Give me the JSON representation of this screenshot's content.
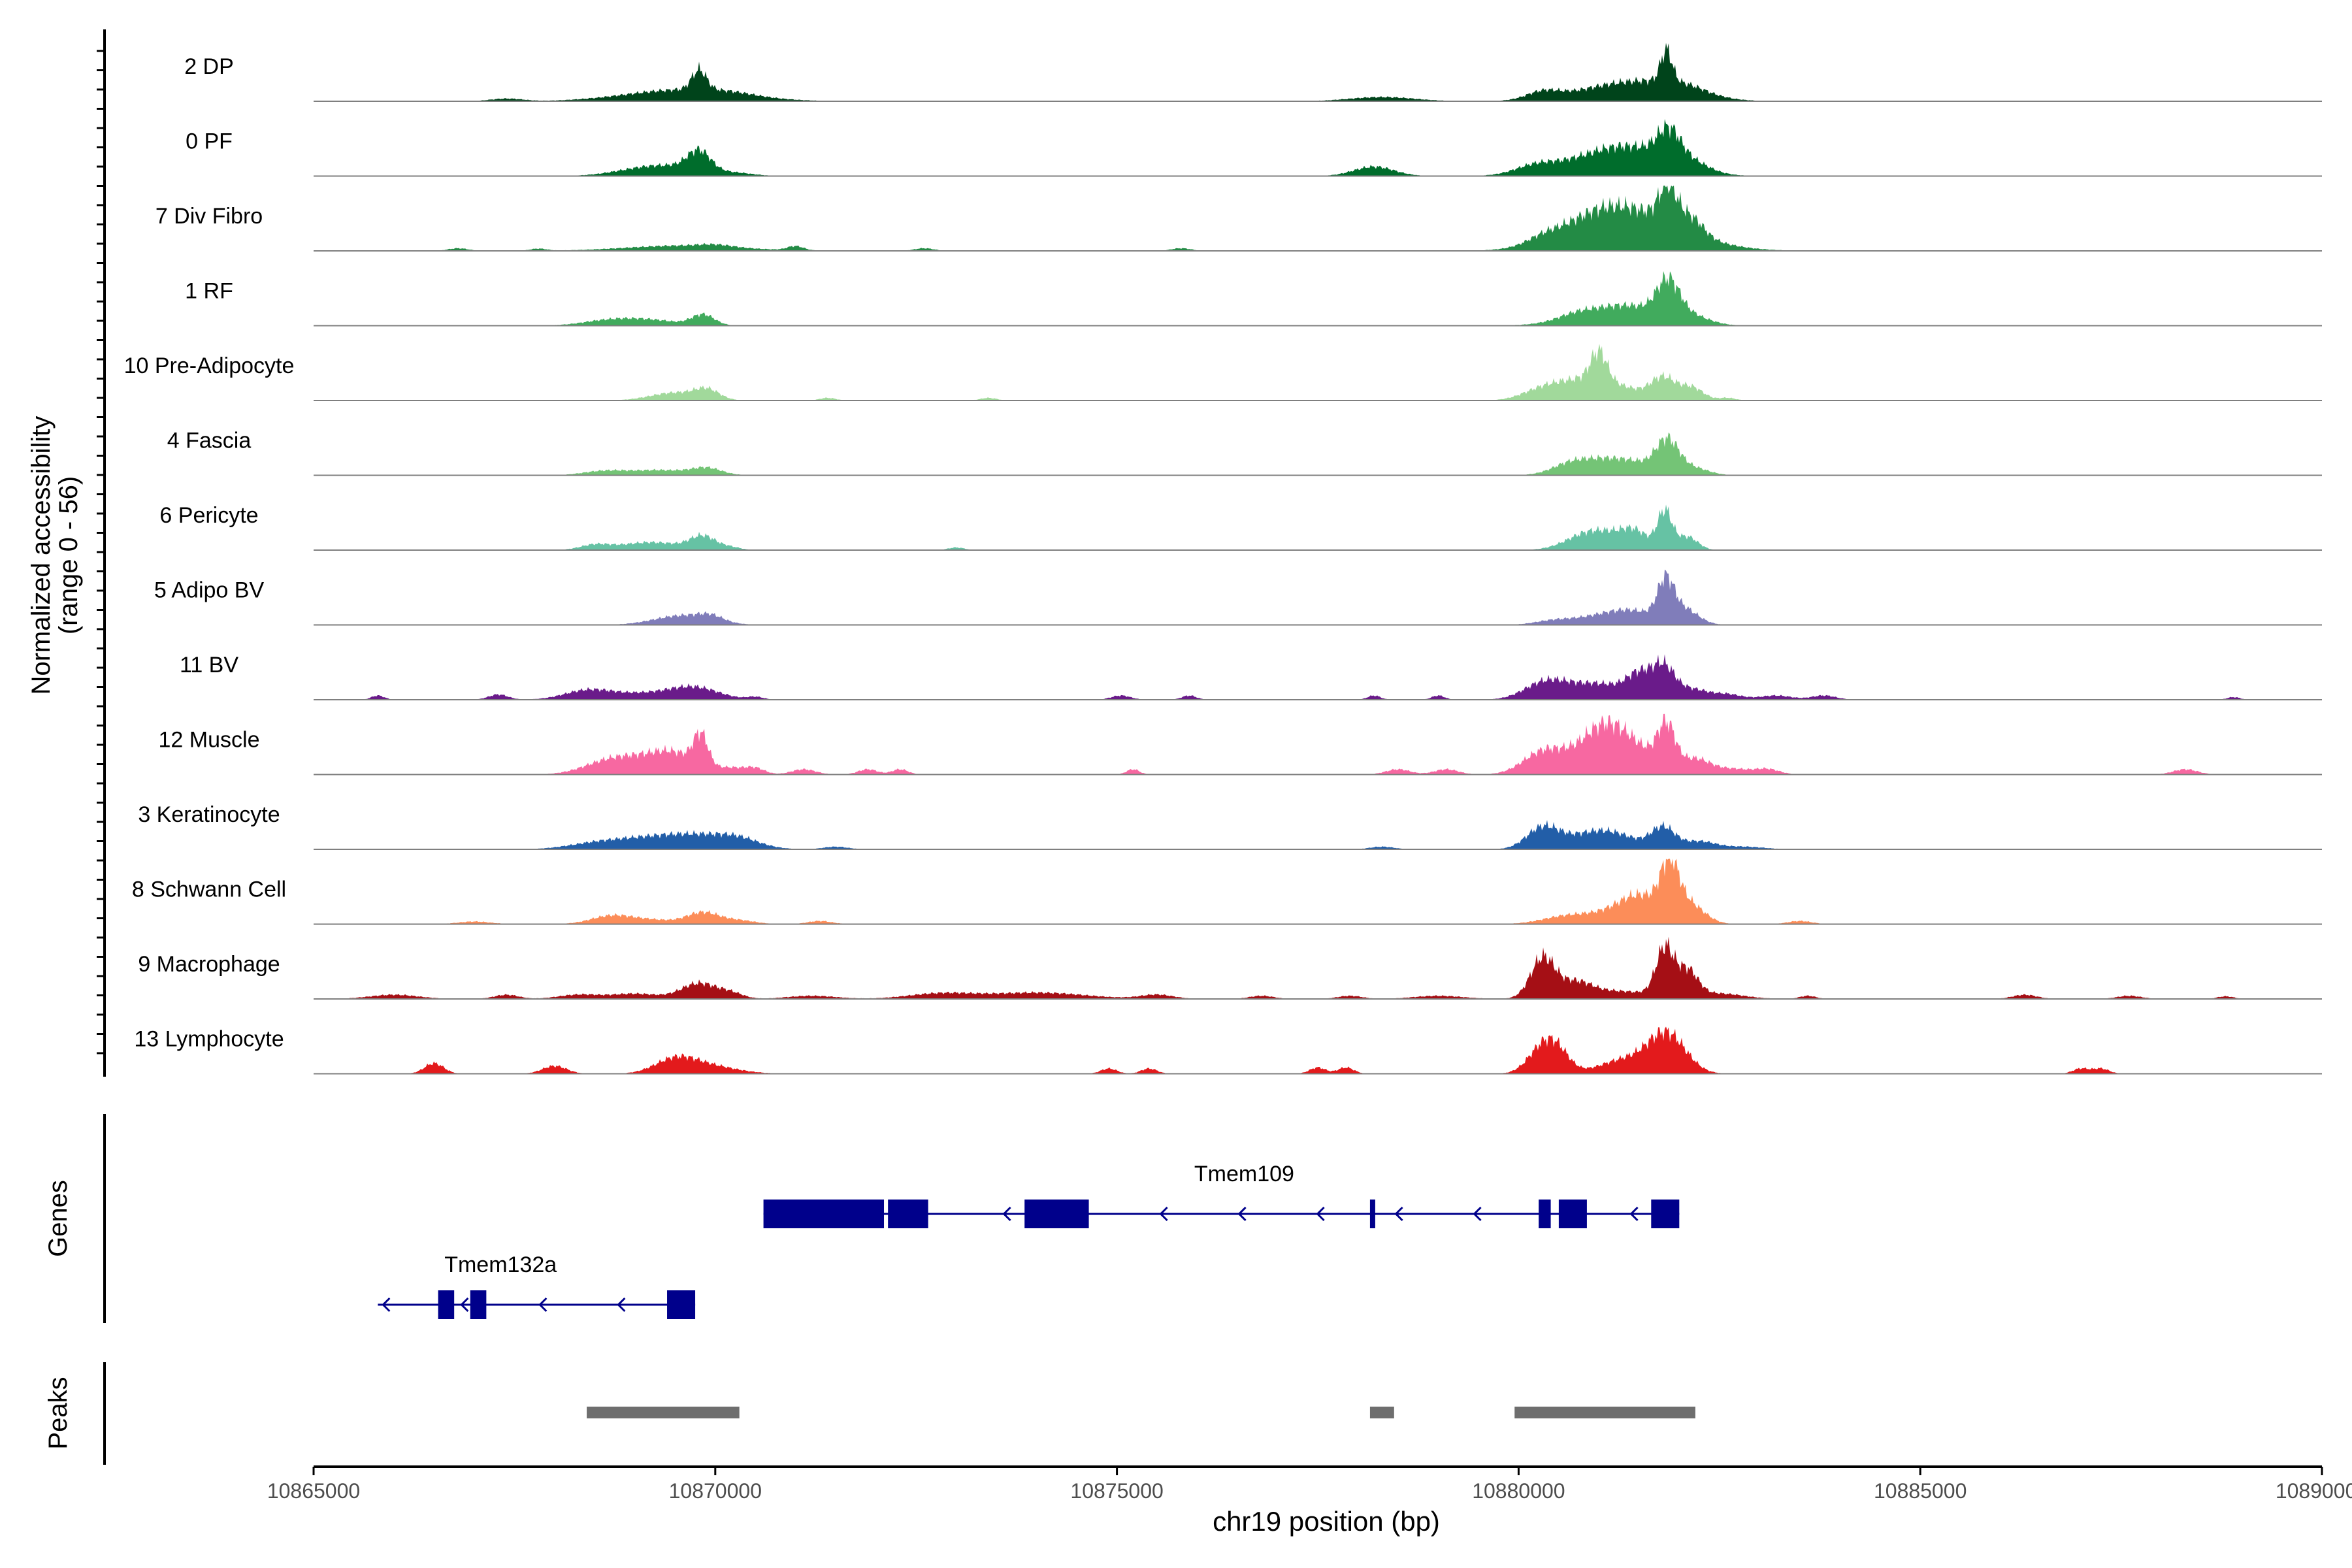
{
  "chart_data": {
    "type": "area",
    "title": "",
    "ylabel_line1": "Normalized accessibility",
    "ylabel_line2": "(range 0 - 56)",
    "xlabel": "chr19 position (bp)",
    "xlim": [
      10865000,
      10890000
    ],
    "xticks": [
      10865000,
      10870000,
      10875000,
      10880000,
      10885000,
      10890000
    ],
    "xtick_labels": [
      "10865000",
      "10870000",
      "10875000",
      "10880000",
      "10885000",
      "10890000"
    ],
    "y_range": [
      0,
      56
    ],
    "tracks": [
      {
        "name": "2 DP",
        "color": "#00441b",
        "peaks": [
          [
            10867400,
            200,
            5
          ],
          [
            10869600,
            700,
            22
          ],
          [
            10869800,
            90,
            38
          ],
          [
            10870200,
            300,
            4
          ],
          [
            10878300,
            400,
            8
          ],
          [
            10880300,
            200,
            14
          ],
          [
            10881000,
            500,
            18
          ],
          [
            10881700,
            500,
            30
          ],
          [
            10881840,
            70,
            60
          ],
          [
            10882100,
            250,
            10
          ]
        ]
      },
      {
        "name": "0 PF",
        "color": "#006d2c",
        "peaks": [
          [
            10869000,
            350,
            6
          ],
          [
            10869500,
            450,
            18
          ],
          [
            10869800,
            140,
            36
          ],
          [
            10870300,
            200,
            3
          ],
          [
            10878200,
            250,
            18
          ],
          [
            10880200,
            250,
            14
          ],
          [
            10881100,
            550,
            40
          ],
          [
            10881600,
            450,
            25
          ],
          [
            10881870,
            140,
            52
          ],
          [
            10882150,
            220,
            15
          ]
        ]
      },
      {
        "name": "7 Div Fibro",
        "color": "#238b45",
        "peaks": [
          [
            10866800,
            120,
            5
          ],
          [
            10867800,
            100,
            4
          ],
          [
            10869600,
            700,
            10
          ],
          [
            10870000,
            200,
            4
          ],
          [
            10871000,
            100,
            8
          ],
          [
            10872600,
            120,
            5
          ],
          [
            10875800,
            120,
            5
          ],
          [
            10880300,
            200,
            10
          ],
          [
            10881000,
            500,
            40
          ],
          [
            10881500,
            650,
            55
          ],
          [
            10881860,
            110,
            70
          ],
          [
            10882150,
            150,
            30
          ]
        ]
      },
      {
        "name": "1 RF",
        "color": "#41ab5d",
        "peaks": [
          [
            10868600,
            300,
            6
          ],
          [
            10869100,
            400,
            12
          ],
          [
            10869850,
            140,
            20
          ],
          [
            10880700,
            200,
            6
          ],
          [
            10881100,
            450,
            30
          ],
          [
            10881500,
            300,
            15
          ],
          [
            10881860,
            140,
            65
          ],
          [
            10882100,
            250,
            20
          ]
        ]
      },
      {
        "name": "10 Pre-Adipocyte",
        "color": "#a1d99b",
        "peaks": [
          [
            10869500,
            300,
            15
          ],
          [
            10869900,
            150,
            18
          ],
          [
            10871400,
            100,
            5
          ],
          [
            10873400,
            100,
            5
          ],
          [
            10880300,
            250,
            20
          ],
          [
            10880800,
            300,
            35
          ],
          [
            10881000,
            100,
            55
          ],
          [
            10881300,
            300,
            20
          ],
          [
            10881800,
            150,
            40
          ],
          [
            10882150,
            150,
            25
          ],
          [
            10882600,
            100,
            5
          ]
        ]
      },
      {
        "name": "4 Fascia",
        "color": "#74c476",
        "peaks": [
          [
            10868600,
            250,
            7
          ],
          [
            10869300,
            400,
            10
          ],
          [
            10869900,
            180,
            12
          ],
          [
            10880600,
            200,
            10
          ],
          [
            10881000,
            350,
            30
          ],
          [
            10881500,
            250,
            15
          ],
          [
            10881850,
            140,
            60
          ],
          [
            10882150,
            200,
            15
          ]
        ]
      },
      {
        "name": "6 Pericyte",
        "color": "#66c2a4",
        "peaks": [
          [
            10868500,
            180,
            9
          ],
          [
            10869200,
            380,
            15
          ],
          [
            10869850,
            160,
            25
          ],
          [
            10870200,
            120,
            5
          ],
          [
            10873000,
            100,
            5
          ],
          [
            10880800,
            250,
            15
          ],
          [
            10881150,
            350,
            30
          ],
          [
            10881450,
            150,
            20
          ],
          [
            10881820,
            90,
            70
          ],
          [
            10882100,
            130,
            25
          ]
        ]
      },
      {
        "name": "5 Adipo BV",
        "color": "#807dba",
        "peaks": [
          [
            10869600,
            350,
            18
          ],
          [
            10869950,
            150,
            10
          ],
          [
            10880400,
            200,
            5
          ],
          [
            10881000,
            400,
            15
          ],
          [
            10881450,
            300,
            20
          ],
          [
            10881830,
            100,
            70
          ],
          [
            10882050,
            180,
            30
          ]
        ]
      },
      {
        "name": "11 BV",
        "color": "#6a1b8a",
        "peaks": [
          [
            10865800,
            80,
            8
          ],
          [
            10867300,
            120,
            10
          ],
          [
            10868400,
            280,
            15
          ],
          [
            10869100,
            500,
            12
          ],
          [
            10869750,
            300,
            20
          ],
          [
            10870500,
            100,
            5
          ],
          [
            10875050,
            120,
            8
          ],
          [
            10875900,
            90,
            8
          ],
          [
            10878200,
            80,
            8
          ],
          [
            10879000,
            80,
            8
          ],
          [
            10880300,
            250,
            25
          ],
          [
            10880600,
            300,
            18
          ],
          [
            10881100,
            300,
            25
          ],
          [
            10881500,
            150,
            40
          ],
          [
            10881800,
            140,
            60
          ],
          [
            10882150,
            200,
            20
          ],
          [
            10882600,
            180,
            10
          ],
          [
            10883200,
            200,
            8
          ],
          [
            10883800,
            150,
            8
          ],
          [
            10888900,
            80,
            5
          ]
        ]
      },
      {
        "name": "12 Muscle",
        "color": "#f768a1",
        "peaks": [
          [
            10868600,
            300,
            15
          ],
          [
            10869000,
            350,
            25
          ],
          [
            10869500,
            280,
            35
          ],
          [
            10869820,
            90,
            60
          ],
          [
            10870200,
            200,
            12
          ],
          [
            10870500,
            120,
            10
          ],
          [
            10871100,
            150,
            10
          ],
          [
            10871900,
            120,
            10
          ],
          [
            10872300,
            100,
            10
          ],
          [
            10875200,
            80,
            10
          ],
          [
            10878500,
            150,
            10
          ],
          [
            10879100,
            150,
            10
          ],
          [
            10880300,
            250,
            40
          ],
          [
            10880800,
            300,
            30
          ],
          [
            10881100,
            250,
            70
          ],
          [
            10881500,
            250,
            40
          ],
          [
            10881840,
            110,
            80
          ],
          [
            10882200,
            200,
            30
          ],
          [
            10882700,
            200,
            10
          ],
          [
            10883100,
            150,
            10
          ],
          [
            10888300,
            150,
            10
          ]
        ]
      },
      {
        "name": "3 Keratinocyte",
        "color": "#225ea8",
        "peaks": [
          [
            10868500,
            350,
            10
          ],
          [
            10869100,
            400,
            15
          ],
          [
            10869800,
            450,
            25
          ],
          [
            10870300,
            250,
            12
          ],
          [
            10871500,
            150,
            5
          ],
          [
            10878300,
            150,
            5
          ],
          [
            10880300,
            200,
            40
          ],
          [
            10880800,
            300,
            20
          ],
          [
            10881200,
            300,
            25
          ],
          [
            10881800,
            150,
            40
          ],
          [
            10882250,
            200,
            15
          ],
          [
            10882800,
            250,
            5
          ]
        ]
      },
      {
        "name": "8 Schwann Cell",
        "color": "#fc8d59",
        "peaks": [
          [
            10867000,
            200,
            5
          ],
          [
            10868700,
            250,
            15
          ],
          [
            10869200,
            300,
            8
          ],
          [
            10869850,
            200,
            22
          ],
          [
            10870300,
            200,
            7
          ],
          [
            10871300,
            150,
            6
          ],
          [
            10880600,
            300,
            15
          ],
          [
            10881200,
            300,
            20
          ],
          [
            10881550,
            250,
            45
          ],
          [
            10881880,
            110,
            90
          ],
          [
            10882100,
            200,
            40
          ],
          [
            10883500,
            150,
            6
          ]
        ]
      },
      {
        "name": "9 Macrophage",
        "color": "#a50f15",
        "peaks": [
          [
            10866000,
            300,
            8
          ],
          [
            10867400,
            150,
            8
          ],
          [
            10868300,
            250,
            8
          ],
          [
            10869000,
            300,
            10
          ],
          [
            10869800,
            220,
            30
          ],
          [
            10870200,
            150,
            10
          ],
          [
            10871200,
            300,
            6
          ],
          [
            10872800,
            400,
            10
          ],
          [
            10874000,
            600,
            12
          ],
          [
            10875500,
            200,
            8
          ],
          [
            10876800,
            150,
            6
          ],
          [
            10877900,
            150,
            6
          ],
          [
            10879000,
            300,
            6
          ],
          [
            10880300,
            150,
            75
          ],
          [
            10880700,
            200,
            25
          ],
          [
            10881200,
            500,
            15
          ],
          [
            10881820,
            110,
            90
          ],
          [
            10882100,
            130,
            50
          ],
          [
            10882500,
            300,
            10
          ],
          [
            10883600,
            100,
            6
          ],
          [
            10886300,
            150,
            8
          ],
          [
            10887600,
            150,
            6
          ],
          [
            10888800,
            100,
            5
          ]
        ]
      },
      {
        "name": "13 Lymphocyte",
        "color": "#e31a1c",
        "peaks": [
          [
            10866500,
            120,
            20
          ],
          [
            10868000,
            150,
            15
          ],
          [
            10869500,
            250,
            25
          ],
          [
            10869900,
            350,
            15
          ],
          [
            10874900,
            100,
            10
          ],
          [
            10875400,
            100,
            10
          ],
          [
            10877500,
            100,
            12
          ],
          [
            10877850,
            100,
            12
          ],
          [
            10880300,
            180,
            50
          ],
          [
            10880500,
            150,
            30
          ],
          [
            10881400,
            350,
            30
          ],
          [
            10881800,
            200,
            50
          ],
          [
            10882000,
            200,
            25
          ],
          [
            10887000,
            100,
            10
          ],
          [
            10887250,
            100,
            10
          ]
        ]
      }
    ],
    "genes_label": "Genes",
    "genes": [
      {
        "name": "Tmem109",
        "start": 10870600,
        "end": 10882000,
        "strand": "-",
        "exons": [
          [
            10870600,
            10872100
          ],
          [
            10872150,
            10872650
          ],
          [
            10873850,
            10874650
          ],
          [
            10878150,
            10878200
          ],
          [
            10880250,
            10880400
          ],
          [
            10880500,
            10880850
          ],
          [
            10881650,
            10882000
          ]
        ]
      },
      {
        "name": "Tmem132a",
        "start": 10865800,
        "end": 10869750,
        "strand": "-",
        "exons": [
          [
            10866550,
            10866750
          ],
          [
            10866950,
            10867150
          ],
          [
            10869400,
            10869750
          ]
        ]
      }
    ],
    "peaks_label": "Peaks",
    "peak_regions": [
      [
        10868400,
        10870300
      ],
      [
        10878150,
        10878450
      ],
      [
        10879950,
        10882200
      ]
    ]
  }
}
